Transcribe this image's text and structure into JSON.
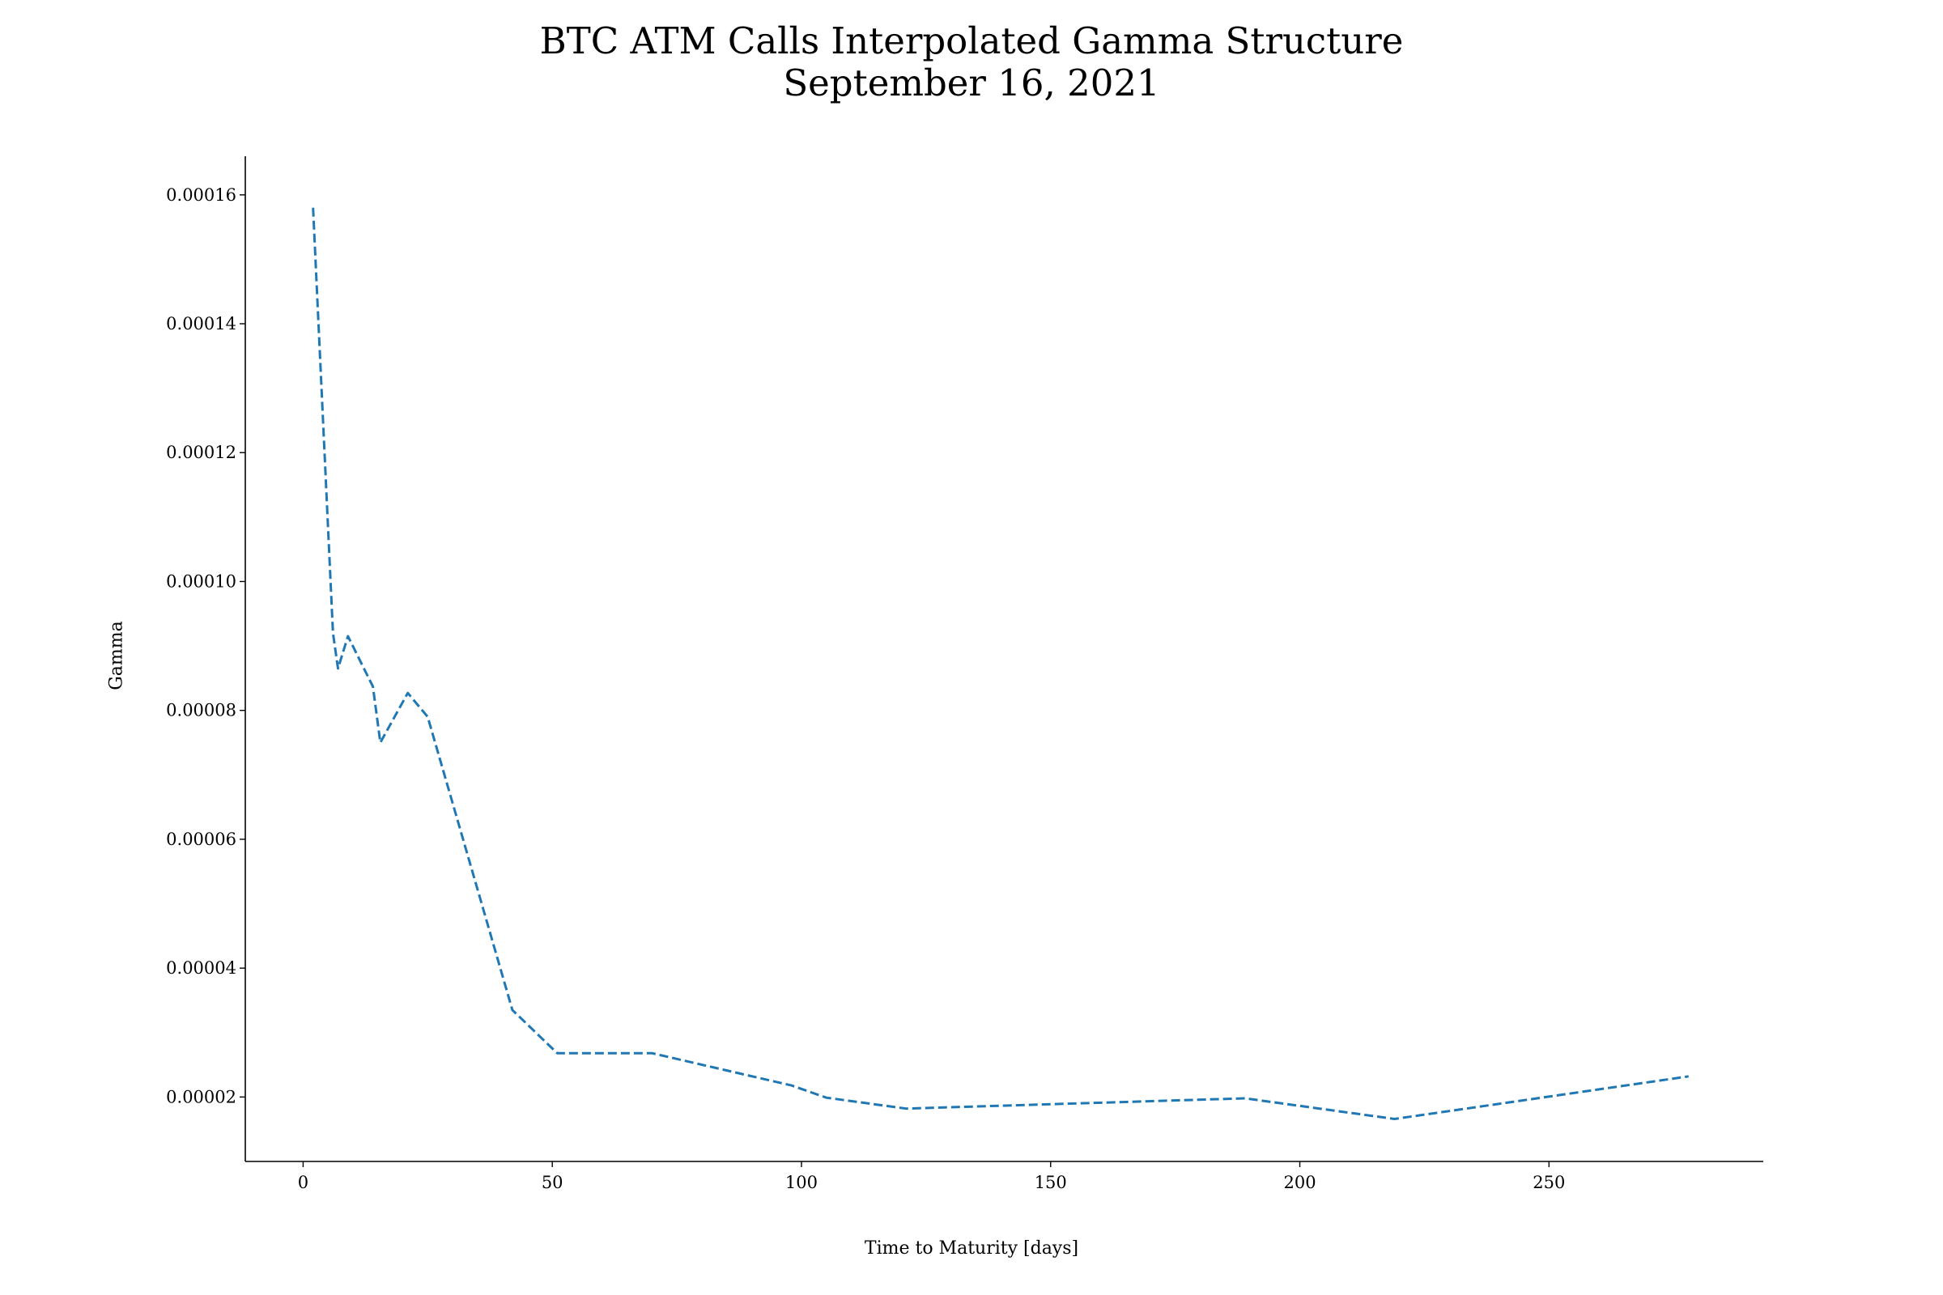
{
  "chart_data": {
    "type": "line",
    "title": "BTC ATM Calls Interpolated Gamma Structure",
    "subtitle": "September 16, 2021",
    "xlabel": "Time to Maturity [days]",
    "ylabel": "Gamma",
    "xlim": [
      -11.6,
      293
    ],
    "ylim": [
      1e-05,
      0.000166
    ],
    "xticks": [
      0,
      50,
      100,
      150,
      200,
      250
    ],
    "xtick_labels": [
      "0",
      "50",
      "100",
      "150",
      "200",
      "250"
    ],
    "yticks": [
      2e-05,
      4e-05,
      6e-05,
      8e-05,
      0.0001,
      0.00012,
      0.00014,
      0.00016
    ],
    "ytick_labels": [
      "0.00002",
      "0.00004",
      "0.00006",
      "0.00008",
      "0.00010",
      "0.00012",
      "0.00014",
      "0.00016"
    ],
    "grid": false,
    "line_style": "dashed",
    "color": "#1f77b4",
    "x": [
      2,
      6,
      7,
      9,
      14,
      15.5,
      21,
      25,
      42,
      51,
      70,
      98,
      105,
      121,
      189,
      219,
      278
    ],
    "y": [
      0.000158,
      9.2e-05,
      8.65e-05,
      9.15e-05,
      8.37e-05,
      7.5e-05,
      8.27e-05,
      7.9e-05,
      3.35e-05,
      2.68e-05,
      2.68e-05,
      2.18e-05,
      1.99e-05,
      1.82e-05,
      1.98e-05,
      1.66e-05,
      2.32e-05
    ]
  }
}
